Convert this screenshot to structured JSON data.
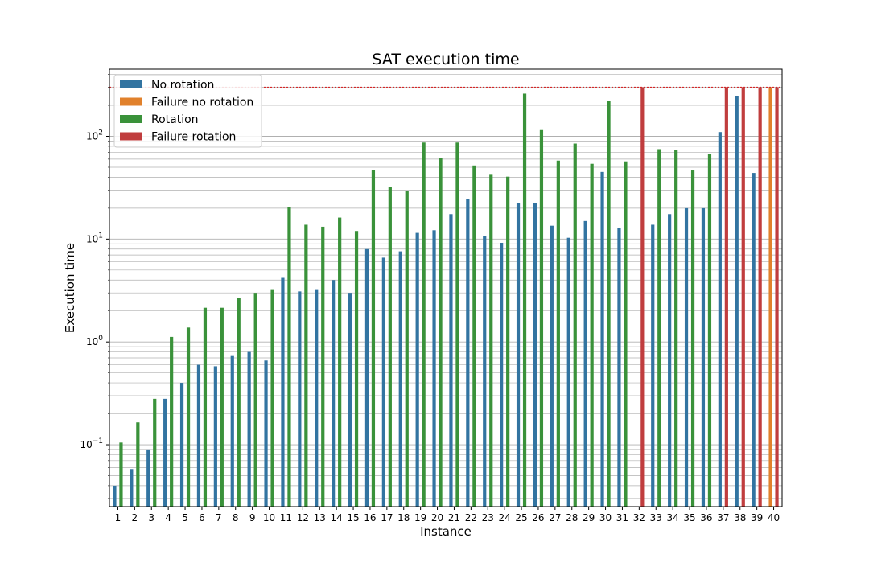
{
  "chart_data": {
    "type": "bar",
    "title": "SAT execution time",
    "xlabel": "Instance",
    "ylabel": "Execution time",
    "yscale": "log",
    "ylim": [
      0.025,
      450
    ],
    "yticks": [
      {
        "value": 0.1,
        "base": "10",
        "exp": "−1"
      },
      {
        "value": 1,
        "base": "10",
        "exp": "0"
      },
      {
        "value": 10,
        "base": "10",
        "exp": "1"
      },
      {
        "value": 100,
        "base": "10",
        "exp": "2"
      }
    ],
    "grid": "horizontal, major and minor",
    "timeout_line": {
      "value": 300,
      "color": "#d62728",
      "style": "dotted"
    },
    "legend": {
      "placement": "top-left",
      "entries": [
        {
          "label": "No rotation",
          "color": "#3274a1"
        },
        {
          "label": "Failure no rotation",
          "color": "#e1812c"
        },
        {
          "label": "Rotation",
          "color": "#3a923a"
        },
        {
          "label": "Failure rotation",
          "color": "#c03d3e"
        }
      ]
    },
    "categories": [
      "1",
      "2",
      "3",
      "4",
      "5",
      "6",
      "7",
      "8",
      "9",
      "10",
      "11",
      "12",
      "13",
      "14",
      "15",
      "16",
      "17",
      "18",
      "19",
      "20",
      "21",
      "22",
      "23",
      "24",
      "25",
      "26",
      "27",
      "28",
      "29",
      "30",
      "31",
      "32",
      "33",
      "34",
      "35",
      "36",
      "37",
      "38",
      "39",
      "40"
    ],
    "series": [
      {
        "name": "No rotation",
        "color": "#3274a1",
        "slot": 0,
        "values": [
          0.04,
          0.058,
          0.09,
          0.28,
          0.4,
          0.6,
          0.58,
          0.73,
          0.8,
          0.66,
          4.2,
          3.1,
          3.2,
          4.0,
          3.0,
          8.0,
          6.6,
          7.6,
          11.5,
          12.2,
          17.5,
          24.5,
          10.8,
          9.2,
          22.5,
          22.5,
          13.5,
          10.3,
          15.0,
          45.0,
          12.8,
          null,
          13.8,
          17.5,
          20.0,
          20.0,
          110,
          245,
          44,
          null
        ]
      },
      {
        "name": "Failure no rotation",
        "color": "#e1812c",
        "slot": 0,
        "values": [
          null,
          null,
          null,
          null,
          null,
          null,
          null,
          null,
          null,
          null,
          null,
          null,
          null,
          null,
          null,
          null,
          null,
          null,
          null,
          null,
          null,
          null,
          null,
          null,
          null,
          null,
          null,
          null,
          null,
          null,
          null,
          null,
          null,
          null,
          null,
          null,
          null,
          null,
          null,
          300
        ]
      },
      {
        "name": "Rotation",
        "color": "#3a923a",
        "slot": 1,
        "values": [
          0.105,
          0.165,
          0.28,
          1.12,
          1.38,
          2.15,
          2.15,
          2.7,
          3.0,
          3.2,
          20.5,
          13.8,
          13.2,
          16.2,
          12.0,
          47.0,
          32.0,
          29.5,
          87.0,
          61.0,
          87.0,
          52.0,
          43.0,
          40.5,
          260,
          115,
          58.0,
          85.0,
          54.0,
          220,
          57.0,
          null,
          75.0,
          74.0,
          46.5,
          67.0,
          null,
          null,
          null,
          null
        ]
      },
      {
        "name": "Failure rotation",
        "color": "#c03d3e",
        "slot": 1,
        "values": [
          null,
          null,
          null,
          null,
          null,
          null,
          null,
          null,
          null,
          null,
          null,
          null,
          null,
          null,
          null,
          null,
          null,
          null,
          null,
          null,
          null,
          null,
          null,
          null,
          null,
          null,
          null,
          null,
          null,
          null,
          null,
          300,
          null,
          null,
          null,
          null,
          300,
          300,
          300,
          300
        ]
      }
    ]
  }
}
